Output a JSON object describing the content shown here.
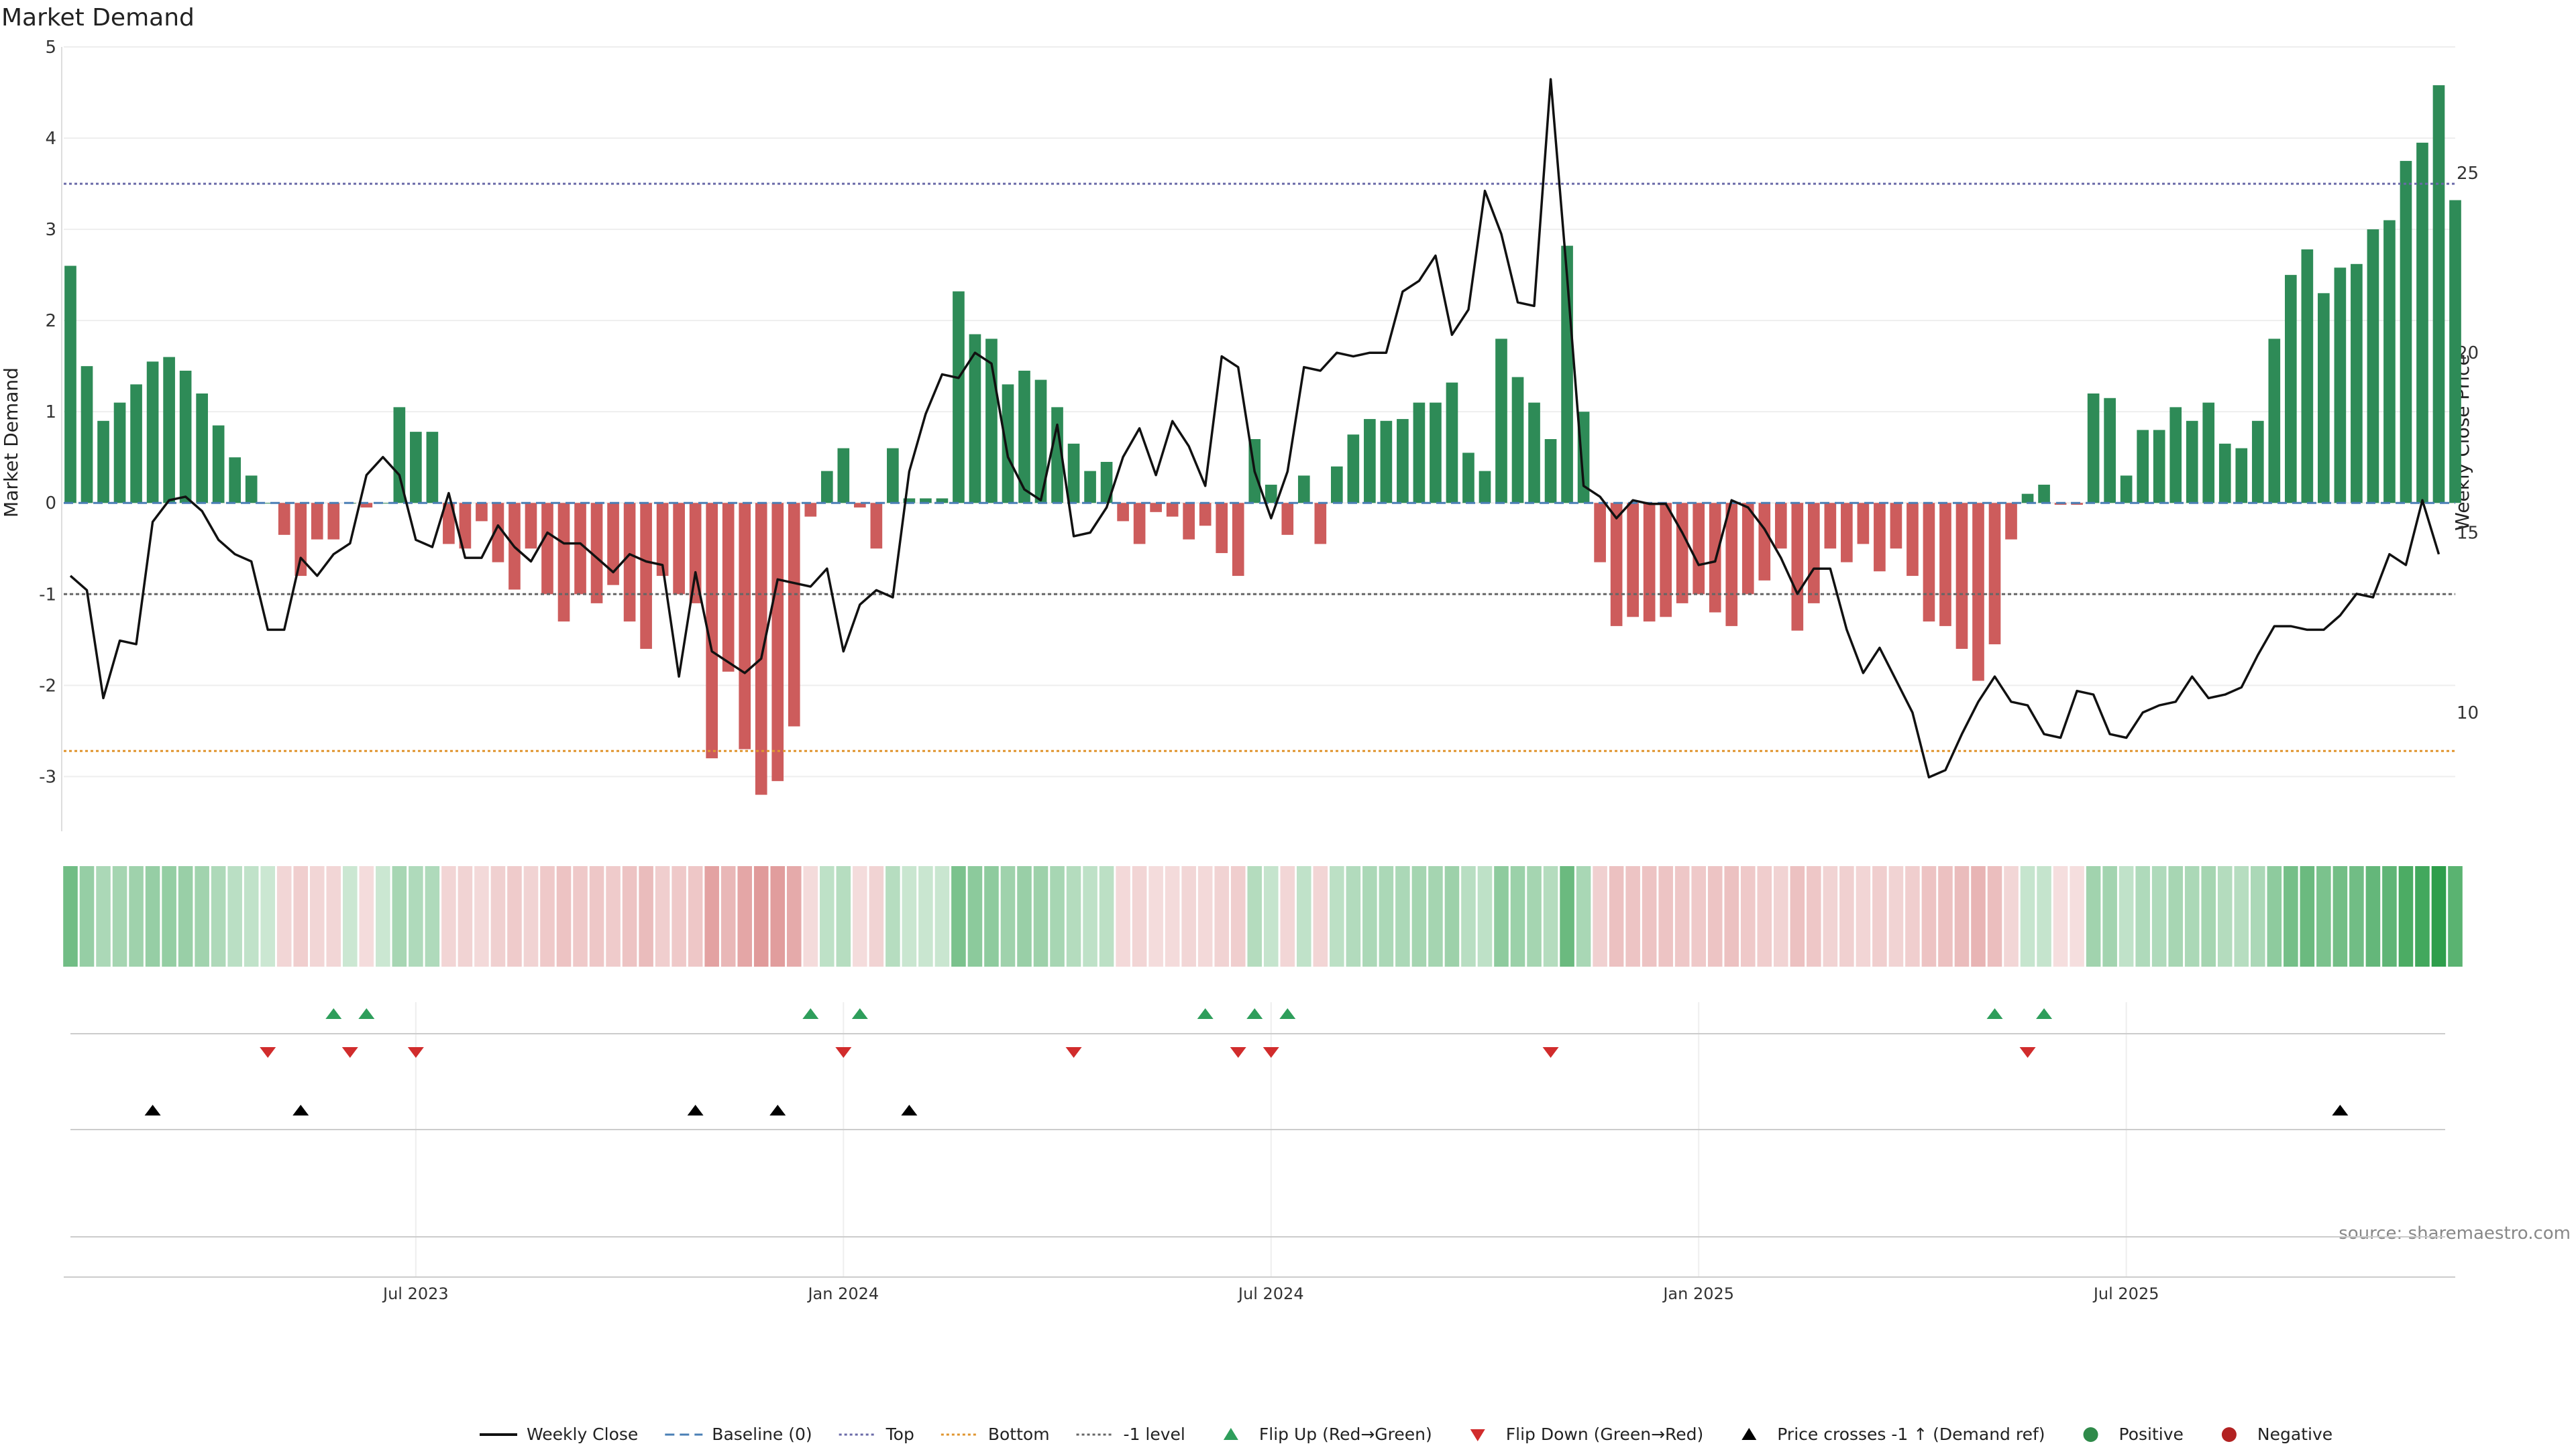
{
  "title": "Market Demand",
  "source": "source: sharemaestro.com",
  "chart_data": {
    "type": "bar",
    "title": "Market Demand",
    "ylabel": "Market Demand",
    "y2label": "Weekly Close Price",
    "ylim": [
      -3.6,
      5.0
    ],
    "y2lim": [
      6.7,
      28.5
    ],
    "yticks": [
      -3,
      -2,
      -1,
      0,
      1,
      2,
      3,
      4,
      5
    ],
    "y2ticks": [
      10,
      15,
      20,
      25
    ],
    "reference_lines": {
      "top": 3.5,
      "bottom": -2.72,
      "minus_one": -1,
      "baseline": 0
    },
    "x_tick_labels": [
      {
        "label": "Jul 2023",
        "index": 21
      },
      {
        "label": "Jan 2024",
        "index": 47
      },
      {
        "label": "Jul 2024",
        "index": 73
      },
      {
        "label": "Jan 2025",
        "index": 99
      },
      {
        "label": "Jul 2025",
        "index": 125
      }
    ],
    "demand": [
      2.6,
      1.5,
      0.9,
      1.1,
      1.3,
      1.55,
      1.6,
      1.45,
      1.2,
      0.85,
      0.5,
      0.3,
      0.0,
      -0.35,
      -0.8,
      -0.4,
      -0.4,
      0.0,
      -0.05,
      0.0,
      1.05,
      0.78,
      0.78,
      -0.45,
      -0.5,
      -0.2,
      -0.65,
      -0.95,
      -0.5,
      -1.0,
      -1.3,
      -1.0,
      -1.1,
      -0.9,
      -1.3,
      -1.6,
      -0.8,
      -1.0,
      -1.1,
      -2.8,
      -1.85,
      -2.7,
      -3.2,
      -3.05,
      -2.45,
      -0.15,
      0.35,
      0.6,
      -0.05,
      -0.5,
      0.6,
      0.05,
      0.05,
      0.05,
      2.32,
      1.85,
      1.8,
      1.3,
      1.45,
      1.35,
      1.05,
      0.65,
      0.35,
      0.45,
      -0.2,
      -0.45,
      -0.1,
      -0.15,
      -0.4,
      -0.25,
      -0.55,
      -0.8,
      0.7,
      0.2,
      -0.35,
      0.3,
      -0.45,
      0.4,
      0.75,
      0.92,
      0.9,
      0.92,
      1.1,
      1.1,
      1.32,
      0.55,
      0.35,
      1.8,
      1.38,
      1.1,
      0.7,
      2.82,
      1.0,
      -0.65,
      -1.35,
      -1.25,
      -1.3,
      -1.25,
      -1.1,
      -1.0,
      -1.2,
      -1.35,
      -1.0,
      -0.85,
      -0.5,
      -1.4,
      -1.1,
      -0.5,
      -0.65,
      -0.45,
      -0.75,
      -0.5,
      -0.8,
      -1.3,
      -1.35,
      -1.6,
      -1.95,
      -1.55,
      -0.4,
      0.1,
      0.2,
      -0.02,
      -0.02,
      1.2,
      1.15,
      0.3,
      0.8,
      0.8,
      1.05,
      0.9,
      1.1,
      0.65,
      0.6,
      0.9,
      1.8,
      2.5,
      2.78,
      2.3,
      2.58,
      2.62,
      3.0,
      3.1,
      3.75,
      3.95,
      4.58,
      3.32
    ],
    "weekly_close": [
      13.8,
      13.4,
      10.4,
      12.0,
      11.9,
      15.3,
      15.9,
      16.0,
      15.6,
      14.8,
      14.4,
      14.2,
      12.3,
      12.3,
      14.3,
      13.8,
      14.4,
      14.7,
      16.6,
      17.1,
      16.6,
      14.8,
      14.6,
      16.1,
      14.3,
      14.3,
      15.2,
      14.6,
      14.2,
      15.0,
      14.7,
      14.7,
      14.3,
      13.9,
      14.4,
      14.2,
      14.1,
      11.0,
      13.9,
      11.7,
      11.4,
      11.1,
      11.5,
      13.7,
      13.6,
      13.5,
      14.0,
      11.7,
      13.0,
      13.4,
      13.2,
      16.7,
      18.3,
      19.4,
      19.3,
      20.0,
      19.7,
      17.1,
      16.2,
      15.9,
      18.0,
      14.9,
      15.0,
      15.7,
      17.1,
      17.9,
      16.6,
      18.1,
      17.4,
      16.3,
      19.9,
      19.6,
      16.7,
      15.4,
      16.7,
      19.6,
      19.5,
      20.0,
      19.9,
      20.0,
      20.0,
      21.7,
      22.0,
      22.7,
      20.5,
      21.2,
      24.5,
      23.3,
      21.4,
      21.3,
      27.6,
      22.1,
      16.3,
      16.0,
      15.4,
      15.9,
      15.8,
      15.8,
      15.0,
      14.1,
      14.2,
      15.9,
      15.7,
      15.1,
      14.3,
      13.3,
      14.0,
      14.0,
      12.3,
      11.1,
      11.8,
      10.9,
      10.0,
      8.2,
      8.4,
      9.4,
      10.3,
      11.0,
      10.3,
      10.2,
      9.4,
      9.3,
      10.6,
      10.5,
      9.4,
      9.3,
      10.0,
      10.2,
      10.3,
      11.0,
      10.4,
      10.5,
      10.7,
      11.6,
      12.4,
      12.4,
      12.3,
      12.3,
      12.7,
      13.3,
      13.2,
      14.4,
      14.1,
      15.9,
      14.4
    ],
    "flip_up_indices": [
      16,
      18,
      45,
      48,
      69,
      72,
      74,
      117,
      120
    ],
    "flip_down_indices": [
      12,
      17,
      21,
      47,
      61,
      71,
      73,
      90,
      119
    ],
    "price_cross_indices": [
      5,
      14,
      38,
      43,
      51,
      138
    ],
    "legend": [
      {
        "label": "Weekly Close",
        "symbol": "solid-line",
        "color": "#111111"
      },
      {
        "label": "Baseline (0)",
        "symbol": "dashed-line",
        "color": "#4a7fb5"
      },
      {
        "label": "Top",
        "symbol": "dotted-line",
        "color": "#6a6aa8"
      },
      {
        "label": "Bottom",
        "symbol": "dotted-line",
        "color": "#e0952f"
      },
      {
        "label": "-1 level",
        "symbol": "dotted-line",
        "color": "#666666"
      },
      {
        "label": "Flip Up (Red→Green)",
        "symbol": "triangle-up",
        "color": "#2e9e5b"
      },
      {
        "label": "Flip Down (Green→Red)",
        "symbol": "triangle-down",
        "color": "#d12c2c"
      },
      {
        "label": "Price crosses -1 ↑ (Demand ref)",
        "symbol": "triangle-up",
        "color": "#000000"
      },
      {
        "label": "Positive",
        "symbol": "circle",
        "color": "#2f8a4a"
      },
      {
        "label": "Negative",
        "symbol": "circle",
        "color": "#b22222"
      }
    ]
  },
  "colors": {
    "positive_bar": "#2e8b57",
    "negative_bar": "#cd5c5c",
    "price_line": "#111111",
    "top_line": "#6a6aa8",
    "bottom_line": "#e0952f",
    "minus_one_line": "#666666",
    "baseline": "#4a7fb5",
    "flip_up": "#2e9e5b",
    "flip_down": "#d12c2c",
    "price_cross": "#000000"
  }
}
